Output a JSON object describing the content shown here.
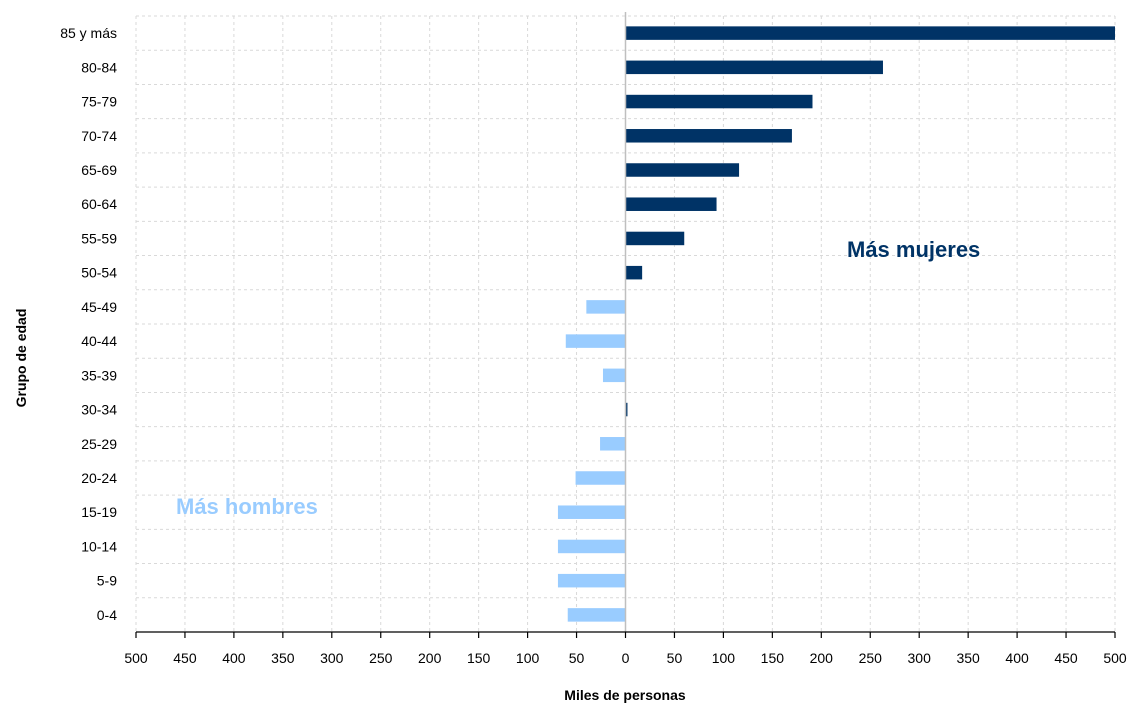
{
  "chart_data": {
    "type": "bar",
    "orientation": "horizontal",
    "categories": [
      "85 y más",
      "80-84",
      "75-79",
      "70-74",
      "65-69",
      "60-64",
      "55-59",
      "50-54",
      "45-49",
      "40-44",
      "35-39",
      "30-34",
      "25-29",
      "20-24",
      "15-19",
      "10-14",
      "5-9",
      "0-4"
    ],
    "values": [
      500,
      263,
      191,
      170,
      116,
      93,
      60,
      17,
      -40,
      -61,
      -23,
      2,
      -26,
      -51,
      -69,
      -69,
      -69,
      -59
    ],
    "xlim": [
      -500,
      500
    ],
    "x_ticks": [
      -500,
      -450,
      -400,
      -350,
      -300,
      -250,
      -200,
      -150,
      -100,
      -50,
      0,
      50,
      100,
      150,
      200,
      250,
      300,
      350,
      400,
      450,
      500
    ],
    "x_tick_labels": [
      "500",
      "450",
      "400",
      "350",
      "300",
      "250",
      "200",
      "150",
      "100",
      "50",
      "0",
      "50",
      "100",
      "150",
      "200",
      "250",
      "300",
      "350",
      "400",
      "450",
      "500"
    ],
    "xlabel": "Miles de personas",
    "ylabel": "Grupo de edad",
    "grid": true,
    "colors": {
      "positive": "#003366",
      "negative": "#99ccff",
      "grid": "#d9d9d9",
      "axis": "#000000"
    },
    "annotations": [
      {
        "text": "Más mujeres",
        "color": "#003366",
        "placement": "upper-right"
      },
      {
        "text": "Más hombres",
        "color": "#99ccff",
        "placement": "lower-left"
      }
    ]
  }
}
